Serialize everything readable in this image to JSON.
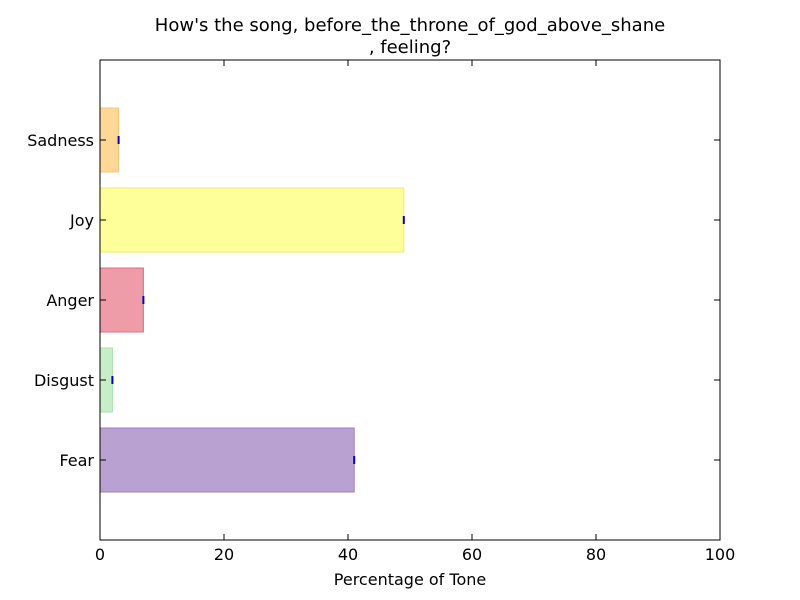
{
  "chart_data": {
    "type": "bar",
    "orientation": "horizontal",
    "title_lines": [
      "How's the song, before_the_throne_of_god_above_shane",
      ", feeling?"
    ],
    "xlabel": "Percentage of Tone",
    "ylabel": "",
    "xlim": [
      0,
      100
    ],
    "xticks": [
      0,
      20,
      40,
      60,
      80,
      100
    ],
    "categories": [
      "Fear",
      "Disgust",
      "Anger",
      "Joy",
      "Sadness"
    ],
    "values": [
      41,
      2,
      7,
      49,
      3
    ],
    "bar_colors": [
      "#b9a2d1",
      "#c8eec8",
      "#ee9ca8",
      "#ffff99",
      "#ffd898"
    ],
    "bar_edge_colors": [
      "#a07cc8",
      "#a8e0a8",
      "#e06a84",
      "#eeee66",
      "#f7c873"
    ],
    "error_marker_color": "#0000cc",
    "grid": false,
    "legend": "none"
  }
}
